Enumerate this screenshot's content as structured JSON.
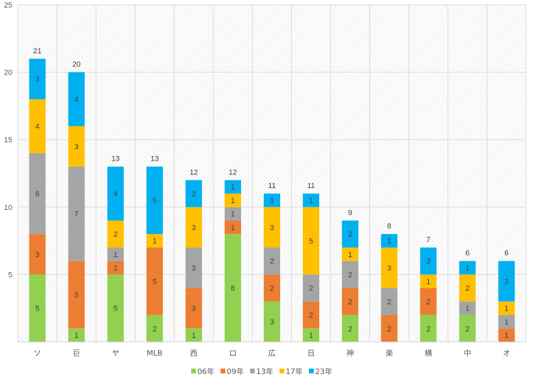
{
  "chart_data": {
    "type": "bar",
    "stacked": true,
    "title": "",
    "xlabel": "",
    "ylabel": "",
    "ylim": [
      0,
      25
    ],
    "yticks": [
      5,
      10,
      15,
      20,
      25
    ],
    "grid": true,
    "legend_position": "bottom",
    "categories": [
      "ソ",
      "巨",
      "ヤ",
      "MLB",
      "西",
      "ロ",
      "広",
      "日",
      "神",
      "楽",
      "横",
      "中",
      "オ"
    ],
    "series": [
      {
        "name": "06年",
        "color": "#92d050",
        "values": [
          5,
          1,
          5,
          2,
          1,
          8,
          3,
          1,
          2,
          0,
          2,
          2,
          0
        ]
      },
      {
        "name": "09年",
        "color": "#ed7d31",
        "values": [
          3,
          5,
          1,
          5,
          3,
          1,
          2,
          2,
          2,
          2,
          2,
          0,
          1
        ]
      },
      {
        "name": "13年",
        "color": "#a5a5a5",
        "values": [
          6,
          7,
          1,
          0,
          3,
          1,
          2,
          2,
          2,
          2,
          0,
          1,
          1
        ]
      },
      {
        "name": "17年",
        "color": "#ffc000",
        "values": [
          4,
          3,
          2,
          1,
          3,
          1,
          3,
          5,
          1,
          3,
          1,
          2,
          1
        ]
      },
      {
        "name": "23年",
        "color": "#00b0f0",
        "values": [
          3,
          4,
          4,
          5,
          2,
          1,
          1,
          1,
          2,
          1,
          2,
          1,
          3
        ]
      }
    ],
    "totals": [
      21,
      20,
      13,
      13,
      12,
      12,
      11,
      11,
      9,
      8,
      7,
      6,
      6
    ]
  }
}
